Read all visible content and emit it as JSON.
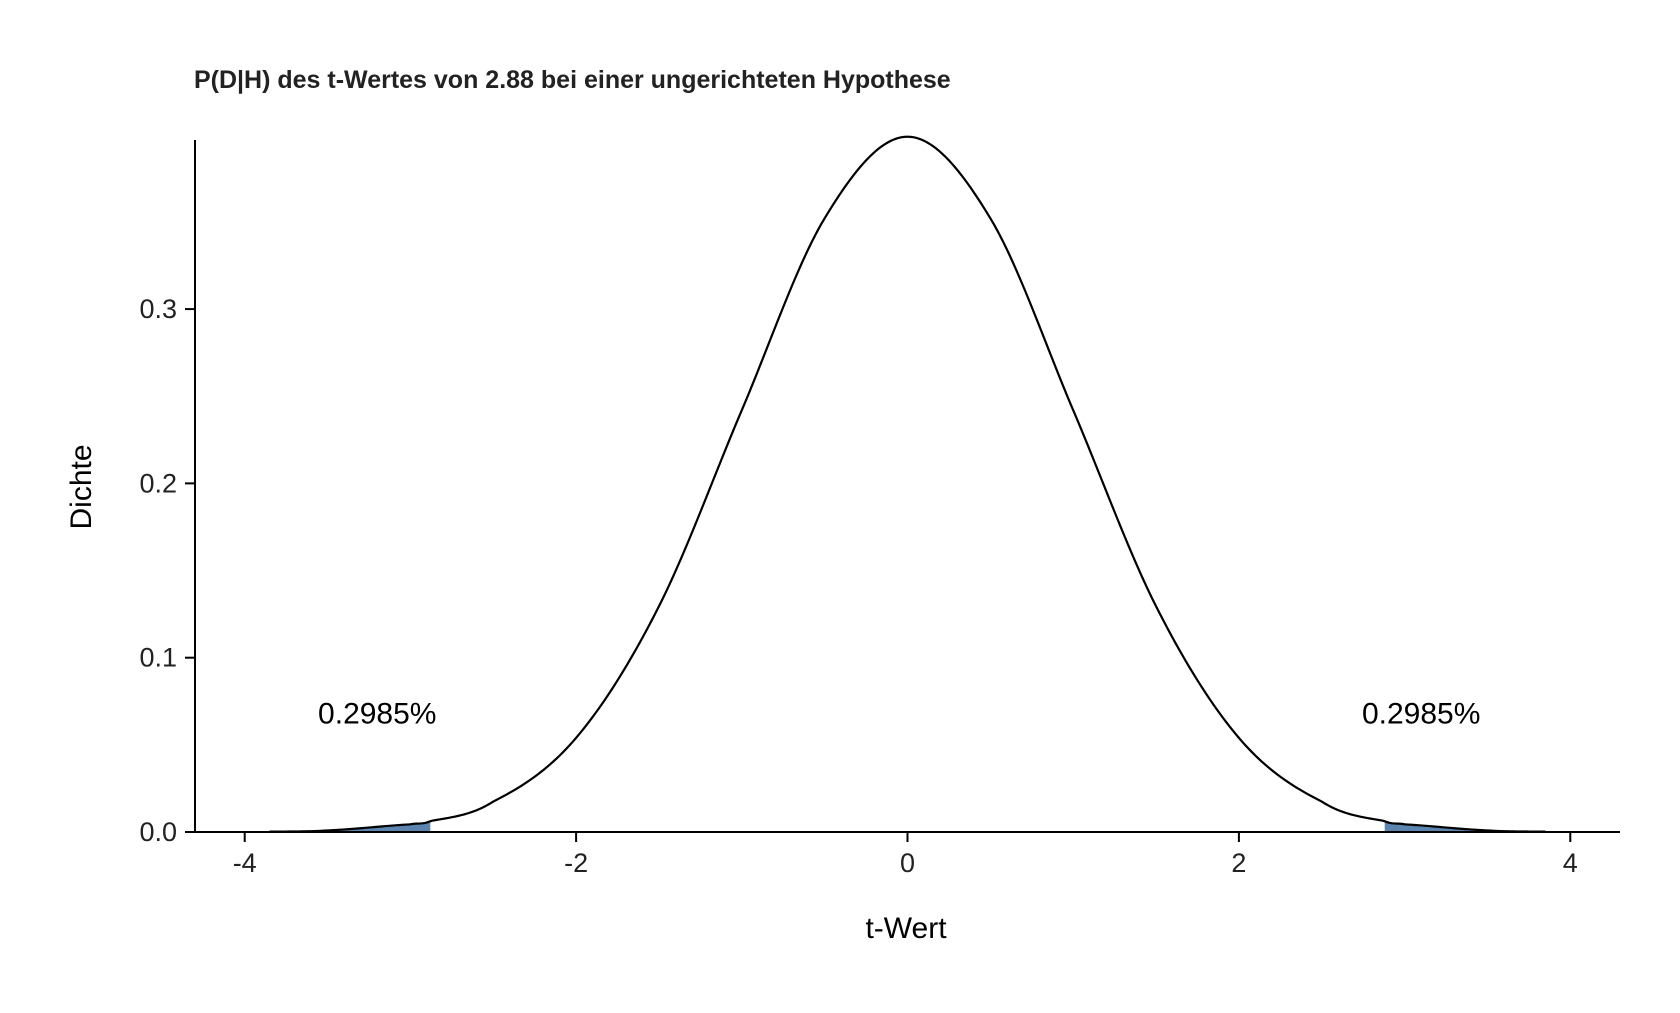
{
  "chart_data": {
    "type": "area",
    "title": "P(D|H) des t-Wertes von 2.88 bei einer ungerichteten Hypothese",
    "xlabel": "t-Wert",
    "ylabel": "Dichte",
    "xlim": [
      -4.3,
      4.3
    ],
    "ylim": [
      0,
      0.397
    ],
    "x_ticks": [
      -4,
      -2,
      0,
      2,
      4
    ],
    "x_tick_labels": [
      "-4",
      "-2",
      "0",
      "2",
      "4"
    ],
    "y_ticks": [
      0.0,
      0.1,
      0.2,
      0.3
    ],
    "y_tick_labels": [
      "0.0",
      "0.1",
      "0.2",
      "0.3"
    ],
    "grid": false,
    "series": [
      {
        "x": [
          -3.85,
          -3.5,
          -3.0,
          -2.88,
          -2.5,
          -2.0,
          -1.5,
          -1.0,
          -0.5,
          0.0,
          0.5,
          1.0,
          1.5,
          2.0,
          2.5,
          2.88,
          3.0,
          3.5,
          3.85
        ],
        "y": [
          0.0002,
          0.0009,
          0.0044,
          0.0063,
          0.0175,
          0.054,
          0.1295,
          0.242,
          0.3521,
          0.3989,
          0.3521,
          0.242,
          0.1295,
          0.054,
          0.0175,
          0.0063,
          0.0044,
          0.0009,
          0.0002
        ]
      }
    ],
    "shaded_regions": [
      {
        "x_from": -3.85,
        "x_to": -2.88,
        "color": "#5B84AE"
      },
      {
        "x_from": 2.88,
        "x_to": 3.85,
        "color": "#5B84AE"
      }
    ],
    "annotations": [
      {
        "text": "0.2985%",
        "x": -3.2,
        "y": 0.068
      },
      {
        "text": "0.2985%",
        "x": 3.1,
        "y": 0.068
      }
    ],
    "curve_color": "#000000"
  }
}
